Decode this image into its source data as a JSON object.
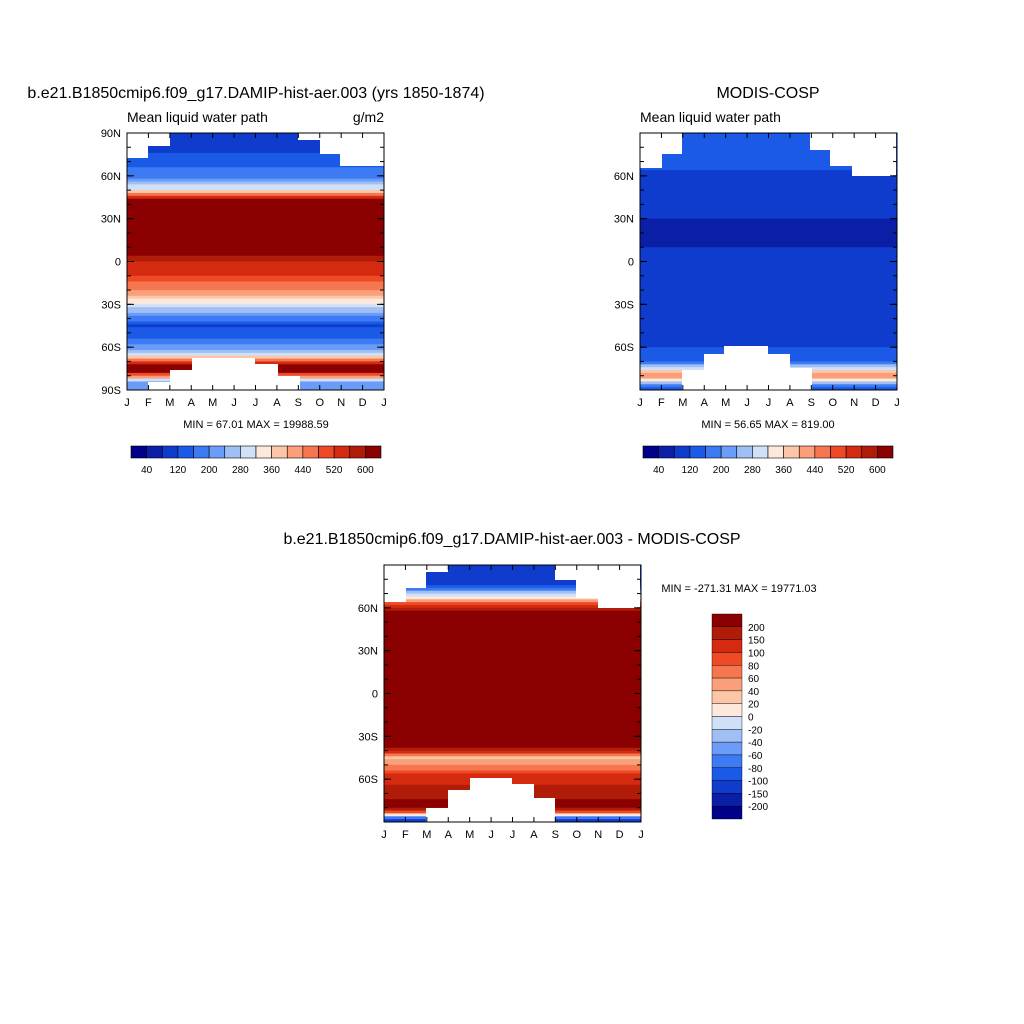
{
  "chart_data": [
    {
      "type": "heatmap",
      "title": "b.e21.B1850cmip6.f09_g17.DAMIP-hist-aer.003 (yrs 1850-1874)",
      "left_string": "Mean liquid water path",
      "right_string": "g/m2",
      "stats": "MIN =  67.01 MAX = 19988.59",
      "x_ticks": [
        "J",
        "F",
        "M",
        "A",
        "M",
        "J",
        "J",
        "A",
        "S",
        "O",
        "N",
        "D",
        "J"
      ],
      "y_ticks": [
        "90N",
        "60N",
        "30N",
        "0",
        "30S",
        "60S",
        "90S"
      ],
      "y_range": [
        -90,
        90
      ],
      "colorbar": {
        "levels": [
          40,
          80,
          120,
          160,
          200,
          240,
          280,
          320,
          360,
          400,
          440,
          480,
          520,
          560,
          600
        ],
        "tick_labels": [
          "40",
          "120",
          "200",
          "280",
          "360",
          "440",
          "520",
          "600"
        ],
        "colors": [
          "#00008b",
          "#0a1fa6",
          "#0f3ccc",
          "#1a5ae6",
          "#3d7bf5",
          "#6b9cf7",
          "#9fbff5",
          "#cfe0f7",
          "#fde9dc",
          "#fcc6a8",
          "#fa9f79",
          "#f5764f",
          "#ee4a26",
          "#d42a10",
          "#b01c08",
          "#8b0000"
        ]
      },
      "zonal_field": [
        {
          "lat": 80,
          "value": 100
        },
        {
          "lat": 60,
          "value": 180
        },
        {
          "lat": 50,
          "value": 330
        },
        {
          "lat": 42,
          "value": 640
        },
        {
          "lat": 20,
          "value": 800
        },
        {
          "lat": 0,
          "value": 560
        },
        {
          "lat": -10,
          "value": 520
        },
        {
          "lat": -22,
          "value": 420
        },
        {
          "lat": -35,
          "value": 240
        },
        {
          "lat": -45,
          "value": 110
        },
        {
          "lat": -55,
          "value": 170
        },
        {
          "lat": -65,
          "value": 280
        },
        {
          "lat": -75,
          "value": 700
        },
        {
          "lat": -85,
          "value": 200
        }
      ]
    },
    {
      "type": "heatmap",
      "title": "MODIS-COSP",
      "left_string": "Mean liquid water path",
      "stats": "MIN =  56.65 MAX = 819.00",
      "x_ticks": [
        "J",
        "F",
        "M",
        "A",
        "M",
        "J",
        "J",
        "A",
        "S",
        "O",
        "N",
        "D",
        "J"
      ],
      "y_ticks": [
        "60N",
        "30N",
        "0",
        "30S",
        "60S"
      ],
      "y_range": [
        -90,
        90
      ],
      "colorbar": {
        "levels": [
          40,
          80,
          120,
          160,
          200,
          240,
          280,
          320,
          360,
          400,
          440,
          480,
          520,
          560,
          600
        ],
        "tick_labels": [
          "40",
          "120",
          "200",
          "280",
          "360",
          "440",
          "520",
          "600"
        ],
        "colors": [
          "#00008b",
          "#0a1fa6",
          "#0f3ccc",
          "#1a5ae6",
          "#3d7bf5",
          "#6b9cf7",
          "#9fbff5",
          "#cfe0f7",
          "#fde9dc",
          "#fcc6a8",
          "#fa9f79",
          "#f5764f",
          "#ee4a26",
          "#d42a10",
          "#b01c08",
          "#8b0000"
        ]
      },
      "zonal_field": [
        {
          "lat": 80,
          "value": 150
        },
        {
          "lat": 60,
          "value": 110
        },
        {
          "lat": 40,
          "value": 90
        },
        {
          "lat": 20,
          "value": 70
        },
        {
          "lat": 0,
          "value": 90
        },
        {
          "lat": -30,
          "value": 95
        },
        {
          "lat": -55,
          "value": 105
        },
        {
          "lat": -70,
          "value": 160
        },
        {
          "lat": -80,
          "value": 450
        },
        {
          "lat": -88,
          "value": 150
        }
      ]
    },
    {
      "type": "heatmap",
      "title": "b.e21.B1850cmip6.f09_g17.DAMIP-hist-aer.003 - MODIS-COSP",
      "stats": "MIN = -271.31 MAX = 19771.03",
      "x_ticks": [
        "J",
        "F",
        "M",
        "A",
        "M",
        "J",
        "J",
        "A",
        "S",
        "O",
        "N",
        "D",
        "J"
      ],
      "y_ticks": [
        "60N",
        "30N",
        "0",
        "30S",
        "60S"
      ],
      "y_range": [
        -90,
        90
      ],
      "colorbar": {
        "levels": [
          -200,
          -150,
          -100,
          -80,
          -60,
          -40,
          -20,
          0,
          20,
          40,
          60,
          80,
          100,
          150,
          200
        ],
        "tick_labels": [
          "200",
          "150",
          "100",
          "80",
          "60",
          "40",
          "20",
          "0",
          "-20",
          "-40",
          "-60",
          "-80",
          "-100",
          "-150",
          "-200"
        ],
        "colors": [
          "#00008b",
          "#0a1fa6",
          "#0f3ccc",
          "#1a5ae6",
          "#3d7bf5",
          "#6b9cf7",
          "#9fbff5",
          "#cfe0f7",
          "#fde9dc",
          "#fcc6a8",
          "#fa9f79",
          "#f5764f",
          "#ee4a26",
          "#d42a10",
          "#b01c08",
          "#8b0000"
        ]
      },
      "zonal_field": [
        {
          "lat": 80,
          "value": -150
        },
        {
          "lat": 65,
          "value": 40
        },
        {
          "lat": 55,
          "value": 250
        },
        {
          "lat": 0,
          "value": 400
        },
        {
          "lat": -35,
          "value": 250
        },
        {
          "lat": -45,
          "value": 30
        },
        {
          "lat": -55,
          "value": 90
        },
        {
          "lat": -65,
          "value": 160
        },
        {
          "lat": -80,
          "value": 230
        },
        {
          "lat": -88,
          "value": -120
        }
      ]
    }
  ]
}
